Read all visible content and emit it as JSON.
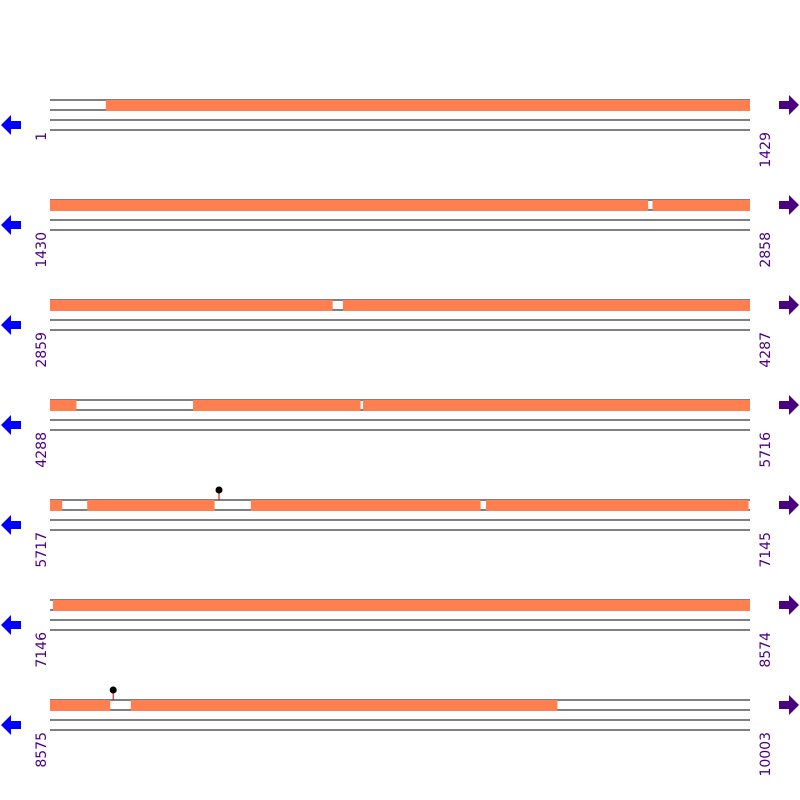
{
  "colors": {
    "feature": "#ff7f50",
    "line": "#000000",
    "label": "#4b0082",
    "left_arrow": "#0000ff",
    "right_arrow": "#4b0082",
    "lollipop_stem": "#cc0000",
    "lollipop_head": "#000000"
  },
  "icons": {
    "left": "arrow-left-icon",
    "right": "arrow-right-icon"
  },
  "rows": [
    {
      "start": "1",
      "end": "1429",
      "s": 1,
      "e": 1429,
      "features": [
        [
          115,
          1429
        ]
      ],
      "lollipops": []
    },
    {
      "start": "1430",
      "end": "2858",
      "s": 1430,
      "e": 2858,
      "features": [
        [
          1430,
          2650
        ],
        [
          2660,
          2858
        ]
      ],
      "lollipops": []
    },
    {
      "start": "2859",
      "end": "4287",
      "s": 2859,
      "e": 4287,
      "features": [
        [
          2859,
          3435
        ],
        [
          3457,
          4287
        ]
      ],
      "lollipops": []
    },
    {
      "start": "4288",
      "end": "5716",
      "s": 4288,
      "e": 5716,
      "features": [
        [
          4288,
          4341
        ],
        [
          4580,
          4921
        ],
        [
          4927,
          5716
        ]
      ],
      "lollipops": []
    },
    {
      "start": "5717",
      "end": "7145",
      "s": 5717,
      "e": 7145,
      "features": [
        [
          5717,
          5741
        ],
        [
          5793,
          6052
        ],
        [
          6127,
          6595
        ],
        [
          6607,
          7142
        ]
      ],
      "lollipops": [
        6062
      ]
    },
    {
      "start": "7146",
      "end": "8574",
      "s": 7146,
      "e": 8574,
      "features": [
        [
          7152,
          8574
        ]
      ],
      "lollipops": []
    },
    {
      "start": "8575",
      "end": "10003",
      "s": 8575,
      "e": 10003,
      "features": [
        [
          8575,
          8697
        ],
        [
          8740,
          9610
        ]
      ],
      "lollipops": [
        8704
      ]
    }
  ]
}
